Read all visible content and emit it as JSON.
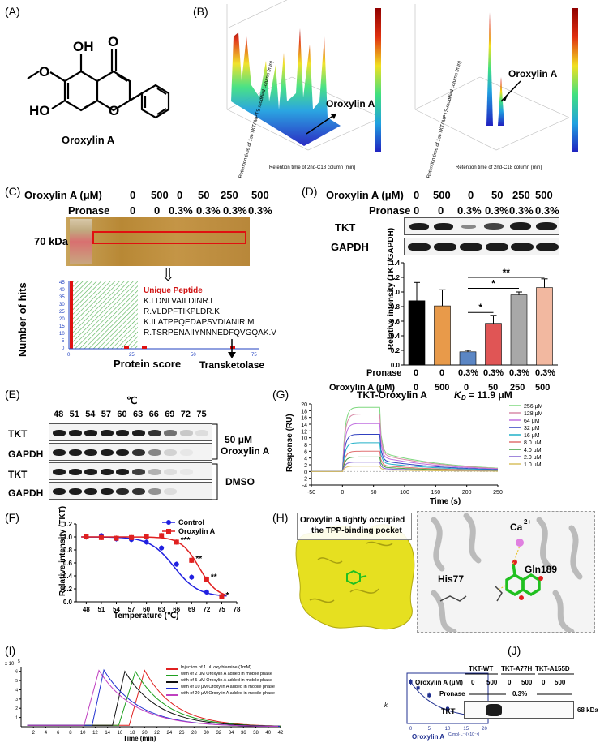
{
  "panels": {
    "A": {
      "letter": "(A)",
      "compound": "Oroxylin A",
      "atoms": [
        "O",
        "OH",
        "OH",
        "O",
        "HO"
      ]
    },
    "B": {
      "letter": "(B)",
      "arrow_label": "Oroxylin A",
      "xlabel": "Retention time of 2nd-C18 column (min)",
      "ylabel": "Retention time of 1st-TKT/ MPTS-modified column (min)"
    },
    "C": {
      "letter": "(C)",
      "row1_label": "Oroxylin A (μM)",
      "row1_vals": [
        "0",
        "500",
        "0",
        "50",
        "250",
        "500"
      ],
      "row2_label": "Pronase",
      "row2_vals": [
        "0",
        "0",
        "0.3%",
        "0.3%",
        "0.3%",
        "0.3%"
      ],
      "marker_label": "70 kDa",
      "hist_title": "Unique Peptide",
      "peptides": [
        "K.LDNLVAILDINR.L",
        "R.VLDPFTIKPLDR.K",
        "K.ILATPPQEDAPSVDIANIR.M",
        "R.TSRPENAIIYNNNEDFQVGQAK.V"
      ],
      "protein": "Transketolase",
      "ylabel": "Number of hits",
      "xlabel": "Protein score",
      "yticks": [
        "0",
        "5",
        "10",
        "15",
        "20",
        "25",
        "30",
        "35",
        "40",
        "45"
      ],
      "xticks": [
        "0",
        "25",
        "50",
        "75"
      ]
    },
    "D": {
      "letter": "(D)",
      "row1_label": "Oroxylin A (μM)",
      "row1_vals": [
        "0",
        "500",
        "0",
        "50",
        "250",
        "500"
      ],
      "row2_label": "Pronase",
      "row2_vals": [
        "0",
        "0",
        "0.3%",
        "0.3%",
        "0.3%",
        "0.3%"
      ],
      "blot_labels": [
        "TKT",
        "GAPDH"
      ],
      "ylabel": "Relative intensity (TKT/GAPDH)",
      "yticks": [
        "0.0",
        "0.2",
        "0.4",
        "0.6",
        "0.8",
        "1.0",
        "1.2",
        "1.4"
      ],
      "sig": [
        "*",
        "*",
        "**"
      ],
      "xrow1_label": "Pronase",
      "xrow1": [
        "0",
        "0",
        "0.3%",
        "0.3%",
        "0.3%",
        "0.3%"
      ],
      "xrow2_label": "Oroxylin A (μM)",
      "xrow2": [
        "0",
        "500",
        "0",
        "50",
        "250",
        "500"
      ]
    },
    "E": {
      "letter": "(E)",
      "unit": "℃",
      "temps": [
        "48",
        "51",
        "54",
        "57",
        "60",
        "63",
        "66",
        "69",
        "72",
        "75"
      ],
      "rows": [
        "TKT",
        "GAPDH",
        "TKT",
        "GAPDH"
      ],
      "group1": "50 μM",
      "group1b": "Oroxylin A",
      "group2": "DMSO"
    },
    "F": {
      "letter": "(F)",
      "legend": [
        "Control",
        "Oroxylin A"
      ],
      "ylabel": "Relative intensity (TKT)",
      "xlabel": "Temperature (℃)",
      "yticks": [
        "0.0",
        "0.2",
        "0.4",
        "0.6",
        "0.8",
        "1.0",
        "1.2"
      ],
      "xticks": [
        "48",
        "51",
        "54",
        "57",
        "60",
        "63",
        "66",
        "69",
        "72",
        "75",
        "78"
      ],
      "sig": [
        "***",
        "**",
        "**",
        "*"
      ]
    },
    "G": {
      "letter": "(G)",
      "title": "TKT-Oroxylin A",
      "kd_label": "K",
      "kd_sub": "D",
      "kd_value": "= 11.9 μM",
      "ylabel": "Response (RU)",
      "xlabel": "Time (s)",
      "yticks": [
        "-4",
        "-2",
        "0",
        "2",
        "4",
        "6",
        "8",
        "10",
        "12",
        "14",
        "16",
        "18",
        "20"
      ],
      "xticks": [
        "-50",
        "0",
        "50",
        "100",
        "150",
        "200",
        "250"
      ],
      "legend": [
        "256 μM",
        "128 μM",
        "64 μM",
        "32 μM",
        "16 μM",
        "8.0 μM",
        "4.0 μM",
        "2.0 μM",
        "1.0 μM"
      ]
    },
    "H": {
      "letter": "(H)",
      "caption1": "Oroxylin A tightly occupied",
      "caption2": "the TPP-binding pocket",
      "res1": "His77",
      "res2": "Gln189",
      "ion": "Ca",
      "ion_sup": "2+"
    },
    "I": {
      "letter": "(I)",
      "yexp": "x 10",
      "yexp_sup": "5",
      "legend": [
        "Injection of 1 μL oxythiamine (1mM)",
        "with of 2 μM Oroxylin A added in mobile phase",
        "with of 5 μM Oroxylin A added in mobile phase",
        "with of 10 μM Oroxylin A added in mobile phase",
        "with of 20 μM Oroxylin A added in mobile phase"
      ],
      "xlabel": "Time (min)",
      "xticks": [
        "2",
        "4",
        "6",
        "8",
        "10",
        "12",
        "14",
        "16",
        "18",
        "20",
        "22",
        "24",
        "26",
        "28",
        "30",
        "32",
        "34",
        "36",
        "38",
        "40",
        "42"
      ],
      "yticks": [
        "1",
        "2",
        "3",
        "4",
        "5",
        "6"
      ],
      "inset_xlabel": "Oroxylin A",
      "inset_xunit": "C/mol·L⁻¹(×10⁻⁶)",
      "inset_ylabel": "k",
      "inset_xticks": [
        "0",
        "5",
        "10",
        "15",
        "20"
      ]
    },
    "J": {
      "letter": "(J)",
      "groups": [
        "TKT-WT",
        "TKT-A77H",
        "TKT-A155D"
      ],
      "row1_label": "Oroxylin A (μM)",
      "row1_vals": [
        "0",
        "500",
        "0",
        "500",
        "0",
        "500"
      ],
      "row2_label": "Pronase",
      "row2_val": "0.3%",
      "row_label": "TKT",
      "marker": "68 kDa"
    }
  },
  "chart_data": [
    {
      "type": "bar",
      "title": "",
      "ylabel": "Relative intensity (TKT/GAPDH)",
      "ylim": [
        0,
        1.4
      ],
      "categories": [
        "0/0",
        "0/500",
        "0.3%/0",
        "0.3%/50",
        "0.3%/250",
        "0.3%/500"
      ],
      "values": [
        0.88,
        0.81,
        0.18,
        0.57,
        0.96,
        1.06
      ],
      "errors": [
        0.25,
        0.22,
        0.02,
        0.11,
        0.04,
        0.12
      ],
      "colors": [
        "#000000",
        "#e89a4a",
        "#5b86c4",
        "#e05555",
        "#a8a8a8",
        "#f2b8a0"
      ]
    },
    {
      "type": "line",
      "title": "",
      "xlabel": "Temperature (℃)",
      "ylabel": "Relative intensity (TKT)",
      "xlim": [
        48,
        78
      ],
      "ylim": [
        0,
        1.2
      ],
      "series": [
        {
          "name": "Control",
          "x": [
            48,
            51,
            54,
            57,
            60,
            63,
            66,
            69,
            72,
            75
          ],
          "values": [
            1.0,
            1.02,
            0.97,
            0.96,
            0.92,
            0.83,
            0.58,
            0.38,
            0.15,
            0.08
          ]
        },
        {
          "name": "Oroxylin A",
          "x": [
            48,
            51,
            54,
            57,
            60,
            63,
            66,
            69,
            72,
            75
          ],
          "values": [
            1.0,
            0.99,
            0.98,
            0.99,
            1.0,
            1.02,
            0.92,
            0.64,
            0.35,
            0.08
          ]
        }
      ]
    },
    {
      "type": "line",
      "title": "TKT-Oroxylin A",
      "xlabel": "Time (s)",
      "ylabel": "Response (RU)",
      "xlim": [
        -50,
        250
      ],
      "ylim": [
        -4,
        20
      ],
      "series": [
        {
          "name": "256 μM",
          "plateau": 19.0
        },
        {
          "name": "128 μM",
          "plateau": 17.0
        },
        {
          "name": "64 μM",
          "plateau": 14.2
        },
        {
          "name": "32 μM",
          "plateau": 11.0
        },
        {
          "name": "16 μM",
          "plateau": 8.5
        },
        {
          "name": "8.0 μM",
          "plateau": 6.0
        },
        {
          "name": "4.0 μM",
          "plateau": 4.3
        },
        {
          "name": "2.0 μM",
          "plateau": 2.8
        },
        {
          "name": "1.0 μM",
          "plateau": 1.6
        }
      ],
      "colors": [
        "#7fd87f",
        "#d88aa8",
        "#c070e0",
        "#3040c0",
        "#20b0c8",
        "#e07070",
        "#40a040",
        "#8060d0",
        "#d8c060"
      ]
    },
    {
      "type": "line",
      "title": "",
      "xlabel": "Time (min)",
      "ylabel": "",
      "xlim": [
        0,
        42
      ],
      "ylim": [
        0,
        6.5
      ],
      "series": [
        {
          "name": "Injection of 1 μL oxythiamine (1mM)",
          "peak_x": 20,
          "peak_y": 6.1
        },
        {
          "name": "with of 2 μM Oroxylin A added in mobile phase",
          "peak_x": 18.5,
          "peak_y": 6.0
        },
        {
          "name": "with of 5 μM Oroxylin A added in mobile phase",
          "peak_x": 16.8,
          "peak_y": 6.0
        },
        {
          "name": "with of 10 μM Oroxylin A added in mobile phase",
          "peak_x": 13.4,
          "peak_y": 6.15
        },
        {
          "name": "with of 20 μM Oroxylin A added in mobile phase",
          "peak_x": 12.6,
          "peak_y": 6.1
        }
      ],
      "colors": [
        "#e02020",
        "#20a020",
        "#101010",
        "#2030d0",
        "#c040c0"
      ]
    },
    {
      "type": "scatter",
      "title": "",
      "xlabel": "Oroxylin A",
      "ylabel": "k",
      "x": [
        0,
        2,
        5,
        10,
        20
      ],
      "values": [
        31,
        29,
        26.5,
        22,
        19.5
      ]
    }
  ]
}
